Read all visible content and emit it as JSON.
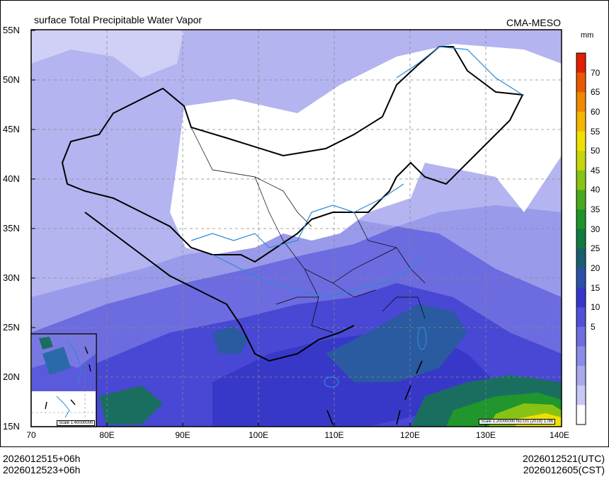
{
  "title": "surface Total Precipitable Water Vapor",
  "agency": "CMA-MESO",
  "unit": "mm",
  "lat_labels": [
    "55N",
    "50N",
    "45N",
    "40N",
    "35N",
    "30N",
    "25N",
    "20N",
    "15N"
  ],
  "lon_labels": [
    "70",
    "80E",
    "90E",
    "100E",
    "110E",
    "120E",
    "130E",
    "140E"
  ],
  "colorbar_labels": [
    "70",
    "65",
    "60",
    "55",
    "50",
    "45",
    "40",
    "35",
    "30",
    "25",
    "20",
    "15",
    "10",
    "5"
  ],
  "colorbar_colors": [
    "#ffffff",
    "#c8c8f4",
    "#a8a8ee",
    "#8c8ce8",
    "#6e6ee0",
    "#5050d8",
    "#3636cc",
    "#2a50a8",
    "#1a5e70",
    "#107a40",
    "#209428",
    "#48aa1a",
    "#88c214",
    "#c8d40c",
    "#f0e000",
    "#f4b400",
    "#f08800",
    "#e85800",
    "#e02000"
  ],
  "scale_main": "Scale 1:20000000 No:GS (2019) 1786",
  "scale_inset": "Scale 1:40000000",
  "footer_left": [
    "2026012515+06h",
    "2026012523+06h"
  ],
  "footer_right": [
    "2026012521(UTC)",
    "2026012605(CST)"
  ]
}
